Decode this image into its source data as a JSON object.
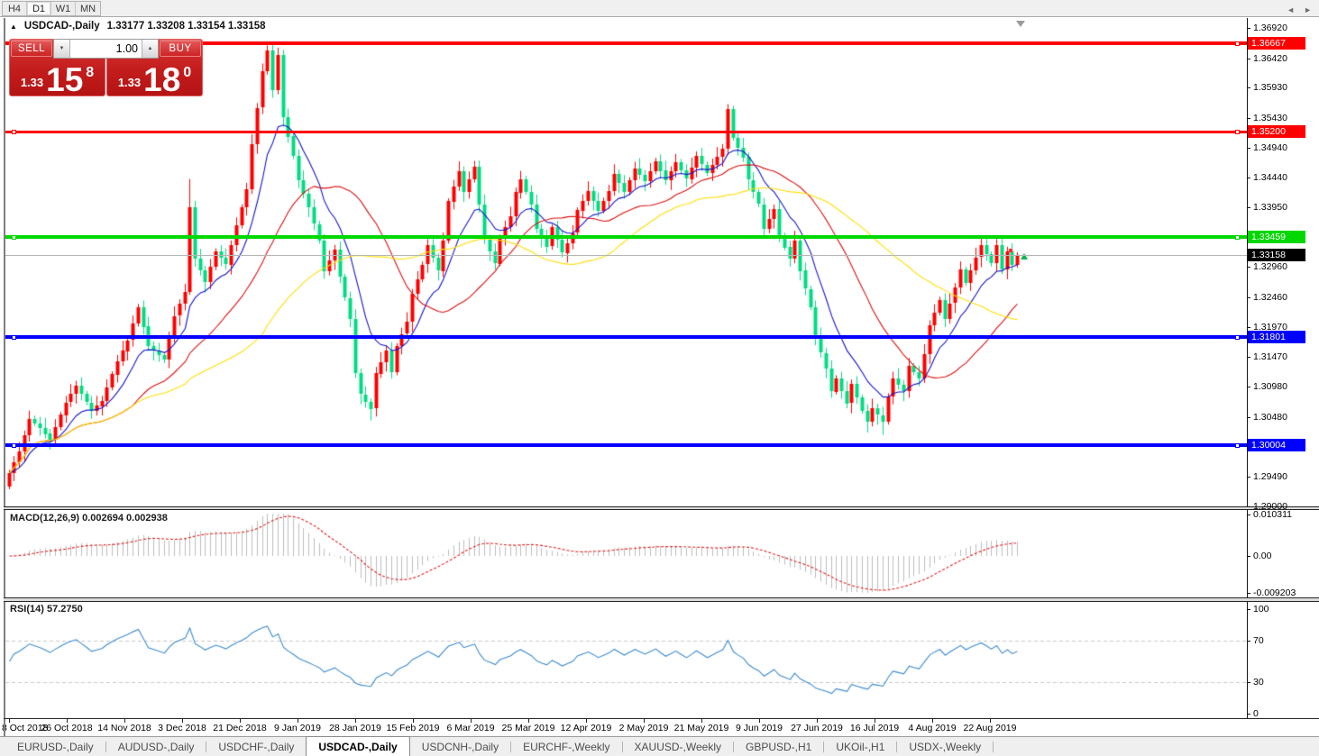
{
  "toolbar": {
    "timeframes": [
      {
        "label": "H4",
        "active": false
      },
      {
        "label": "D1",
        "active": true
      },
      {
        "label": "W1",
        "active": false
      },
      {
        "label": "MN",
        "active": false
      }
    ]
  },
  "chart_header": {
    "collapse_icon": "▲",
    "title": "USDCAD-,Daily",
    "ohlc": "1.33177 1.33208 1.33154 1.33158"
  },
  "trade_panel": {
    "sell_label": "SELL",
    "buy_label": "BUY",
    "volume": "1.00",
    "sell_price": {
      "prefix": "1.33",
      "big": "15",
      "sup": "8"
    },
    "buy_price": {
      "prefix": "1.33",
      "big": "18",
      "sup": "0"
    }
  },
  "icons": {
    "spinner_down": "▼",
    "spinner_up": "▲",
    "tab_prev": "◄",
    "tab_next": "►"
  },
  "colors": {
    "up_candle": "#FF0000",
    "down_candle": "#00DC82",
    "ma_fast": "#1414CC",
    "ma_mid": "#DC1010",
    "ma_slow": "#FFDE00",
    "level_red": "#FF0000",
    "level_green": "#00D800",
    "level_blue": "#0000FF",
    "bid_line": "#B6B6B6",
    "current_label_bg": "#000000",
    "macd_hist": "#BDBDBD",
    "macd_signal": "#E02020",
    "rsi_line": "#3C8BD0",
    "rsi_levels": "#C8C8C8"
  },
  "price_axis": {
    "items": [
      {
        "label": "1.36920",
        "price": 1.3692,
        "style": "plain"
      },
      {
        "label": "1.36667",
        "price": 1.36667,
        "style": "red"
      },
      {
        "label": "1.36420",
        "price": 1.3642,
        "style": "plain"
      },
      {
        "label": "1.35930",
        "price": 1.3593,
        "style": "plain"
      },
      {
        "label": "1.35430",
        "price": 1.3543,
        "style": "plain"
      },
      {
        "label": "1.35200",
        "price": 1.352,
        "style": "red"
      },
      {
        "label": "1.34940",
        "price": 1.3494,
        "style": "plain"
      },
      {
        "label": "1.34440",
        "price": 1.3444,
        "style": "plain"
      },
      {
        "label": "1.33950",
        "price": 1.3395,
        "style": "plain"
      },
      {
        "label": "1.33459",
        "price": 1.33459,
        "style": "green"
      },
      {
        "label": "1.33158",
        "price": 1.33158,
        "style": "current"
      },
      {
        "label": "1.32960",
        "price": 1.3296,
        "style": "plain"
      },
      {
        "label": "1.32460",
        "price": 1.3246,
        "style": "plain"
      },
      {
        "label": "1.31970",
        "price": 1.3197,
        "style": "plain"
      },
      {
        "label": "1.31801",
        "price": 1.31801,
        "style": "blue"
      },
      {
        "label": "1.31470",
        "price": 1.3147,
        "style": "plain"
      },
      {
        "label": "1.30980",
        "price": 1.3098,
        "style": "plain"
      },
      {
        "label": "1.30480",
        "price": 1.3048,
        "style": "plain"
      },
      {
        "label": "1.30004",
        "price": 1.30004,
        "style": "blue"
      },
      {
        "label": "1.29490",
        "price": 1.2949,
        "style": "plain"
      },
      {
        "label": "1.29000",
        "price": 1.29,
        "style": "plain"
      }
    ]
  },
  "hlines": [
    {
      "price": 1.36667,
      "color": "#FF0000",
      "thickness": 4
    },
    {
      "price": 1.352,
      "color": "#FF0000",
      "thickness": 3
    },
    {
      "price": 1.33459,
      "color": "#00D800",
      "thickness": 4
    },
    {
      "price": 1.31801,
      "color": "#0000FF",
      "thickness": 4
    },
    {
      "price": 1.30004,
      "color": "#0000FF",
      "thickness": 4
    }
  ],
  "bid_line": {
    "price": 1.33158
  },
  "macd_panel": {
    "label": "MACD(12,26,9) 0.002694 0.002938",
    "params": [
      12,
      26,
      9
    ],
    "value": 0.002694,
    "signal_value": 0.002938,
    "axis": [
      {
        "label": "0.010311",
        "value": 0.010311
      },
      {
        "label": "0.00",
        "value": 0
      },
      {
        "label": "-0.009203",
        "value": -0.009203
      }
    ]
  },
  "rsi_panel": {
    "label": "RSI(14) 57.2750",
    "period": 14,
    "value": 57.275,
    "axis": [
      {
        "label": "100",
        "value": 100
      },
      {
        "label": "70",
        "value": 70
      },
      {
        "label": "30",
        "value": 30
      },
      {
        "label": "0",
        "value": 0
      }
    ],
    "levels": [
      70,
      30
    ]
  },
  "date_axis": {
    "labels": [
      "8 Oct 2018",
      "26 Oct 2018",
      "14 Nov 2018",
      "3 Dec 2018",
      "21 Dec 2018",
      "9 Jan 2019",
      "28 Jan 2019",
      "15 Feb 2019",
      "6 Mar 2019",
      "25 Mar 2019",
      "12 Apr 2019",
      "2 May 2019",
      "21 May 2019",
      "9 Jun 2019",
      "27 Jun 2019",
      "16 Jul 2019",
      "4 Aug 2019",
      "22 Aug 2019"
    ]
  },
  "tabs": {
    "items": [
      {
        "label": "EURUSD-,Daily",
        "active": false
      },
      {
        "label": "AUDUSD-,Daily",
        "active": false
      },
      {
        "label": "USDCHF-,Daily",
        "active": false
      },
      {
        "label": "USDCAD-,Daily",
        "active": true
      },
      {
        "label": "USDCNH-,Daily",
        "active": false
      },
      {
        "label": "EURCHF-,Weekly",
        "active": false
      },
      {
        "label": "XAUUSD-,Weekly",
        "active": false
      },
      {
        "label": "GBPUSD-,H1",
        "active": false
      },
      {
        "label": "UKOil-,H1",
        "active": false
      },
      {
        "label": "USDX-,Weekly",
        "active": false
      }
    ]
  },
  "chart_data": {
    "type": "candlestick",
    "symbol": "USDCAD-",
    "timeframe": "Daily",
    "current_ohlc": {
      "open": 1.33177,
      "high": 1.33208,
      "low": 1.33154,
      "close": 1.33158
    },
    "bid": 1.33158,
    "ylim": [
      1.289,
      1.3695
    ],
    "y_ticks": [
      1.3692,
      1.3642,
      1.3593,
      1.3543,
      1.3494,
      1.3444,
      1.3395,
      1.3296,
      1.3246,
      1.3197,
      1.3147,
      1.3098,
      1.3048,
      1.2949,
      1.29
    ],
    "levels": [
      1.36667,
      1.352,
      1.33459,
      1.31801,
      1.30004
    ],
    "x_labels": [
      "8 Oct 2018",
      "26 Oct 2018",
      "14 Nov 2018",
      "3 Dec 2018",
      "21 Dec 2018",
      "9 Jan 2019",
      "28 Jan 2019",
      "15 Feb 2019",
      "6 Mar 2019",
      "25 Mar 2019",
      "12 Apr 2019",
      "2 May 2019",
      "21 May 2019",
      "9 Jun 2019",
      "27 Jun 2019",
      "16 Jul 2019",
      "4 Aug 2019",
      "22 Aug 2019"
    ],
    "candles_count": 196,
    "close_path": [
      [
        0,
        1.2955
      ],
      [
        2,
        1.299
      ],
      [
        4,
        1.3045
      ],
      [
        6,
        1.303
      ],
      [
        8,
        1.301
      ],
      [
        11,
        1.3072
      ],
      [
        13,
        1.31
      ],
      [
        16,
        1.3058
      ],
      [
        18,
        1.3075
      ],
      [
        21,
        1.314
      ],
      [
        23,
        1.3175
      ],
      [
        25,
        1.323
      ],
      [
        27,
        1.3165
      ],
      [
        30,
        1.3142
      ],
      [
        32,
        1.3215
      ],
      [
        34,
        1.3255
      ],
      [
        35,
        1.3395
      ],
      [
        36,
        1.331
      ],
      [
        38,
        1.327
      ],
      [
        40,
        1.3322
      ],
      [
        42,
        1.33
      ],
      [
        44,
        1.3365
      ],
      [
        46,
        1.3425
      ],
      [
        47,
        1.35
      ],
      [
        48,
        1.356
      ],
      [
        49,
        1.362
      ],
      [
        50,
        1.3655
      ],
      [
        51,
        1.359
      ],
      [
        52,
        1.3648
      ],
      [
        53,
        1.3545
      ],
      [
        55,
        1.348
      ],
      [
        56,
        1.344
      ],
      [
        58,
        1.3395
      ],
      [
        60,
        1.334
      ],
      [
        61,
        1.329
      ],
      [
        63,
        1.3325
      ],
      [
        64,
        1.328
      ],
      [
        66,
        1.321
      ],
      [
        67,
        1.312
      ],
      [
        68,
        1.3085
      ],
      [
        70,
        1.3062
      ],
      [
        71,
        1.312
      ],
      [
        73,
        1.3158
      ],
      [
        74,
        1.3122
      ],
      [
        75,
        1.3165
      ],
      [
        77,
        1.3205
      ],
      [
        78,
        1.3252
      ],
      [
        80,
        1.33
      ],
      [
        81,
        1.3332
      ],
      [
        83,
        1.329
      ],
      [
        84,
        1.334
      ],
      [
        85,
        1.3405
      ],
      [
        87,
        1.3455
      ],
      [
        88,
        1.342
      ],
      [
        90,
        1.3462
      ],
      [
        91,
        1.34
      ],
      [
        92,
        1.3342
      ],
      [
        94,
        1.3302
      ],
      [
        95,
        1.3345
      ],
      [
        97,
        1.338
      ],
      [
        98,
        1.342
      ],
      [
        99,
        1.3442
      ],
      [
        101,
        1.34
      ],
      [
        102,
        1.336
      ],
      [
        104,
        1.333
      ],
      [
        105,
        1.3362
      ],
      [
        107,
        1.332
      ],
      [
        109,
        1.3352
      ],
      [
        110,
        1.339
      ],
      [
        112,
        1.3422
      ],
      [
        114,
        1.339
      ],
      [
        116,
        1.3422
      ],
      [
        117,
        1.345
      ],
      [
        119,
        1.342
      ],
      [
        121,
        1.346
      ],
      [
        123,
        1.3438
      ],
      [
        125,
        1.3472
      ],
      [
        127,
        1.344
      ],
      [
        129,
        1.347
      ],
      [
        131,
        1.3442
      ],
      [
        133,
        1.348
      ],
      [
        135,
        1.3452
      ],
      [
        138,
        1.3492
      ],
      [
        139,
        1.3558
      ],
      [
        140,
        1.351
      ],
      [
        142,
        1.3478
      ],
      [
        143,
        1.344
      ],
      [
        145,
        1.34
      ],
      [
        146,
        1.336
      ],
      [
        148,
        1.3392
      ],
      [
        149,
        1.3348
      ],
      [
        151,
        1.331
      ],
      [
        152,
        1.334
      ],
      [
        153,
        1.329
      ],
      [
        155,
        1.323
      ],
      [
        156,
        1.318
      ],
      [
        158,
        1.3128
      ],
      [
        159,
        1.309
      ],
      [
        160,
        1.3112
      ],
      [
        162,
        1.307
      ],
      [
        163,
        1.3102
      ],
      [
        165,
        1.3058
      ],
      [
        166,
        1.304
      ],
      [
        167,
        1.3062
      ],
      [
        169,
        1.304
      ],
      [
        170,
        1.3082
      ],
      [
        171,
        1.3112
      ],
      [
        173,
        1.309
      ],
      [
        174,
        1.3132
      ],
      [
        176,
        1.3112
      ],
      [
        177,
        1.3152
      ],
      [
        178,
        1.32
      ],
      [
        180,
        1.3242
      ],
      [
        181,
        1.321
      ],
      [
        183,
        1.3262
      ],
      [
        184,
        1.3292
      ],
      [
        185,
        1.327
      ],
      [
        187,
        1.3312
      ],
      [
        188,
        1.3332
      ],
      [
        190,
        1.3302
      ],
      [
        191,
        1.3332
      ],
      [
        192,
        1.3292
      ],
      [
        193,
        1.3322
      ],
      [
        194,
        1.33
      ],
      [
        195,
        1.33158
      ]
    ],
    "wick_overrides": {
      "35": {
        "high": 1.3442
      },
      "50": {
        "high": 1.36635
      },
      "52": {
        "high": 1.36595
      },
      "70": {
        "low": 1.3042
      },
      "90": {
        "high": 1.3472
      },
      "139": {
        "high": 1.3566
      },
      "166": {
        "low": 1.3022
      },
      "169": {
        "low": 1.3018
      },
      "188": {
        "high": 1.3347
      }
    },
    "moving_averages": [
      {
        "type": "ema",
        "period": 10,
        "color": "#1414CC"
      },
      {
        "type": "sma",
        "period": 25,
        "color": "#DC1010"
      },
      {
        "type": "sma",
        "period": 50,
        "color": "#FFDE00"
      }
    ],
    "macd": {
      "fast": 12,
      "slow": 26,
      "signal": 9
    },
    "rsi": {
      "period": 14
    }
  }
}
